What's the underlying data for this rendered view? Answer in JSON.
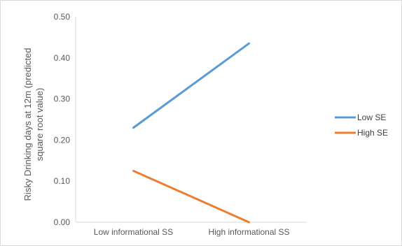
{
  "chart_data": {
    "type": "line",
    "title": "",
    "xlabel": "",
    "ylabel_lines": [
      "Risky Drinking days at 12m (predicted",
      "square root value)"
    ],
    "categories": [
      "Low informational SS",
      "High informational SS"
    ],
    "series": [
      {
        "name": "Low SE",
        "values": [
          0.23,
          0.435
        ],
        "color": "#5B9BD5"
      },
      {
        "name": "High SE",
        "values": [
          0.125,
          0.0
        ],
        "color": "#ED7D31"
      }
    ],
    "ylim": [
      0,
      0.5
    ],
    "yticks": [
      "0.00",
      "0.10",
      "0.20",
      "0.30",
      "0.40",
      "0.50"
    ],
    "grid": false,
    "legend_position": "right"
  }
}
